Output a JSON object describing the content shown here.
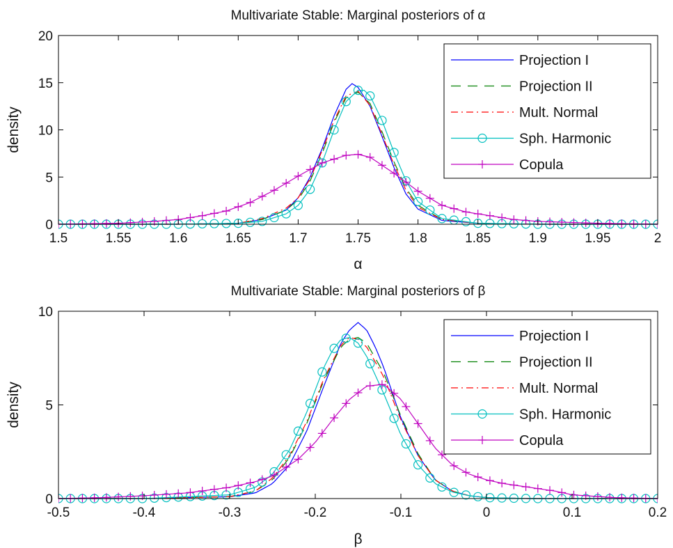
{
  "chart_data": [
    {
      "type": "line",
      "title": "Multivariate Stable: Marginal posteriors of α",
      "xlabel": "α",
      "ylabel": "density",
      "xlim": [
        1.5,
        2.0
      ],
      "ylim": [
        0,
        20
      ],
      "xticks": [
        "1.5",
        "1.55",
        "1.6",
        "1.65",
        "1.7",
        "1.75",
        "1.8",
        "1.85",
        "1.9",
        "1.95",
        "2"
      ],
      "yticks": [
        "0",
        "5",
        "10",
        "15",
        "20"
      ],
      "grid": false,
      "legend_position": "top-right",
      "series": [
        {
          "name": "Projection I",
          "color": "#0000ff",
          "style": "solid",
          "marker": "none",
          "x": [
            1.5,
            1.6,
            1.65,
            1.67,
            1.69,
            1.7,
            1.71,
            1.72,
            1.73,
            1.74,
            1.745,
            1.75,
            1.76,
            1.77,
            1.78,
            1.79,
            1.8,
            1.82,
            1.85,
            1.9,
            2.0
          ],
          "y": [
            0.0,
            0.0,
            0.1,
            0.5,
            1.5,
            2.8,
            5.0,
            8.0,
            11.5,
            14.3,
            14.9,
            14.5,
            12.5,
            9.3,
            6.0,
            3.2,
            1.6,
            0.4,
            0.1,
            0.0,
            0.0
          ]
        },
        {
          "name": "Projection II",
          "color": "#008000",
          "style": "dash",
          "marker": "none",
          "x": [
            1.5,
            1.6,
            1.65,
            1.67,
            1.69,
            1.7,
            1.71,
            1.72,
            1.73,
            1.74,
            1.75,
            1.76,
            1.77,
            1.78,
            1.79,
            1.8,
            1.82,
            1.85,
            1.9,
            2.0
          ],
          "y": [
            0.0,
            0.0,
            0.1,
            0.5,
            1.5,
            2.6,
            4.6,
            7.5,
            10.8,
            13.4,
            14.0,
            12.8,
            9.8,
            6.6,
            3.8,
            2.0,
            0.5,
            0.1,
            0.0,
            0.0
          ]
        },
        {
          "name": "Mult. Normal",
          "color": "#ff0000",
          "style": "dashdot",
          "marker": "none",
          "x": [
            1.5,
            1.6,
            1.65,
            1.67,
            1.69,
            1.7,
            1.71,
            1.72,
            1.73,
            1.74,
            1.75,
            1.76,
            1.77,
            1.78,
            1.79,
            1.8,
            1.82,
            1.85,
            1.9,
            2.0
          ],
          "y": [
            0.0,
            0.0,
            0.1,
            0.6,
            1.7,
            2.8,
            4.8,
            7.8,
            11.0,
            13.6,
            14.1,
            12.6,
            9.5,
            6.3,
            3.6,
            1.8,
            0.5,
            0.1,
            0.0,
            0.0
          ]
        },
        {
          "name": "Sph. Harmonic",
          "color": "#00bfbf",
          "style": "solid",
          "marker": "circle",
          "x": [
            1.5,
            1.6,
            1.65,
            1.67,
            1.69,
            1.7,
            1.71,
            1.72,
            1.73,
            1.74,
            1.75,
            1.755,
            1.76,
            1.77,
            1.78,
            1.79,
            1.8,
            1.82,
            1.85,
            1.9,
            2.0
          ],
          "y": [
            0.0,
            0.0,
            0.1,
            0.3,
            1.1,
            2.0,
            3.7,
            6.5,
            10.0,
            13.0,
            14.2,
            14.2,
            13.6,
            11.0,
            7.6,
            4.6,
            2.4,
            0.6,
            0.1,
            0.0,
            0.0
          ]
        },
        {
          "name": "Copula",
          "color": "#bf00bf",
          "style": "solid",
          "marker": "plus",
          "x": [
            1.5,
            1.55,
            1.58,
            1.6,
            1.62,
            1.64,
            1.66,
            1.68,
            1.7,
            1.72,
            1.74,
            1.75,
            1.76,
            1.78,
            1.8,
            1.82,
            1.84,
            1.86,
            1.88,
            1.9,
            1.95,
            2.0
          ],
          "y": [
            0.0,
            0.1,
            0.3,
            0.5,
            0.9,
            1.4,
            2.3,
            3.6,
            5.1,
            6.5,
            7.3,
            7.4,
            7.1,
            5.4,
            3.5,
            2.0,
            1.3,
            0.9,
            0.5,
            0.3,
            0.1,
            0.0
          ]
        }
      ]
    },
    {
      "type": "line",
      "title": "Multivariate Stable: Marginal posteriors of β",
      "xlabel": "β",
      "ylabel": "density",
      "xlim": [
        -0.5,
        0.2
      ],
      "ylim": [
        0,
        10
      ],
      "xticks": [
        "-0.5",
        "-0.4",
        "-0.3",
        "-0.2",
        "-0.1",
        "0",
        "0.1",
        "0.2"
      ],
      "yticks": [
        "0",
        "5",
        "10"
      ],
      "grid": false,
      "legend_position": "top-right",
      "series": [
        {
          "name": "Projection I",
          "color": "#0000ff",
          "style": "solid",
          "marker": "none",
          "x": [
            -0.5,
            -0.4,
            -0.3,
            -0.27,
            -0.25,
            -0.23,
            -0.21,
            -0.19,
            -0.17,
            -0.16,
            -0.15,
            -0.14,
            -0.13,
            -0.12,
            -0.1,
            -0.08,
            -0.06,
            -0.04,
            -0.02,
            0.0,
            0.05,
            0.2
          ],
          "y": [
            0.0,
            0.0,
            0.1,
            0.3,
            0.8,
            1.8,
            3.6,
            6.0,
            8.3,
            9.0,
            9.4,
            9.0,
            8.1,
            7.0,
            4.3,
            2.3,
            1.0,
            0.4,
            0.15,
            0.05,
            0.0,
            0.0
          ]
        },
        {
          "name": "Projection II",
          "color": "#008000",
          "style": "dash",
          "marker": "none",
          "x": [
            -0.5,
            -0.4,
            -0.3,
            -0.27,
            -0.25,
            -0.23,
            -0.21,
            -0.19,
            -0.17,
            -0.16,
            -0.15,
            -0.14,
            -0.12,
            -0.1,
            -0.08,
            -0.06,
            -0.04,
            -0.02,
            0.0,
            0.05,
            0.2
          ],
          "y": [
            0.0,
            0.0,
            0.1,
            0.4,
            1.0,
            2.2,
            4.0,
            6.3,
            8.1,
            8.5,
            8.6,
            8.3,
            6.7,
            4.4,
            2.4,
            1.0,
            0.4,
            0.15,
            0.05,
            0.0,
            0.0
          ]
        },
        {
          "name": "Mult. Normal",
          "color": "#ff0000",
          "style": "dashdot",
          "marker": "none",
          "x": [
            -0.5,
            -0.4,
            -0.3,
            -0.27,
            -0.25,
            -0.23,
            -0.21,
            -0.19,
            -0.17,
            -0.16,
            -0.15,
            -0.14,
            -0.12,
            -0.1,
            -0.08,
            -0.06,
            -0.04,
            -0.02,
            0.0,
            0.05,
            0.2
          ],
          "y": [
            0.0,
            0.0,
            0.1,
            0.4,
            1.1,
            2.3,
            4.1,
            6.4,
            8.2,
            8.6,
            8.5,
            8.1,
            6.5,
            4.2,
            2.3,
            1.0,
            0.4,
            0.15,
            0.05,
            0.0,
            0.0
          ]
        },
        {
          "name": "Sph. Harmonic",
          "color": "#00bfbf",
          "style": "solid",
          "marker": "circle",
          "x": [
            -0.5,
            -0.4,
            -0.3,
            -0.27,
            -0.25,
            -0.23,
            -0.21,
            -0.19,
            -0.18,
            -0.17,
            -0.16,
            -0.15,
            -0.14,
            -0.12,
            -0.1,
            -0.08,
            -0.06,
            -0.04,
            -0.02,
            0.0,
            0.05,
            0.2
          ],
          "y": [
            0.0,
            0.0,
            0.2,
            0.6,
            1.3,
            2.6,
            4.6,
            7.0,
            7.9,
            8.5,
            8.6,
            8.3,
            7.6,
            5.6,
            3.4,
            1.8,
            0.8,
            0.35,
            0.15,
            0.05,
            0.0,
            0.0
          ]
        },
        {
          "name": "Copula",
          "color": "#bf00bf",
          "style": "solid",
          "marker": "plus",
          "x": [
            -0.5,
            -0.45,
            -0.4,
            -0.35,
            -0.3,
            -0.27,
            -0.25,
            -0.22,
            -0.2,
            -0.18,
            -0.16,
            -0.14,
            -0.12,
            -0.1,
            -0.08,
            -0.06,
            -0.04,
            -0.02,
            0.0,
            0.02,
            0.05,
            0.08,
            0.1,
            0.15,
            0.2
          ],
          "y": [
            0.0,
            0.05,
            0.15,
            0.3,
            0.6,
            0.9,
            1.2,
            2.1,
            3.0,
            4.2,
            5.3,
            6.0,
            6.1,
            5.3,
            4.0,
            2.7,
            1.8,
            1.3,
            1.0,
            0.8,
            0.6,
            0.4,
            0.2,
            0.05,
            0.0
          ]
        }
      ]
    }
  ]
}
